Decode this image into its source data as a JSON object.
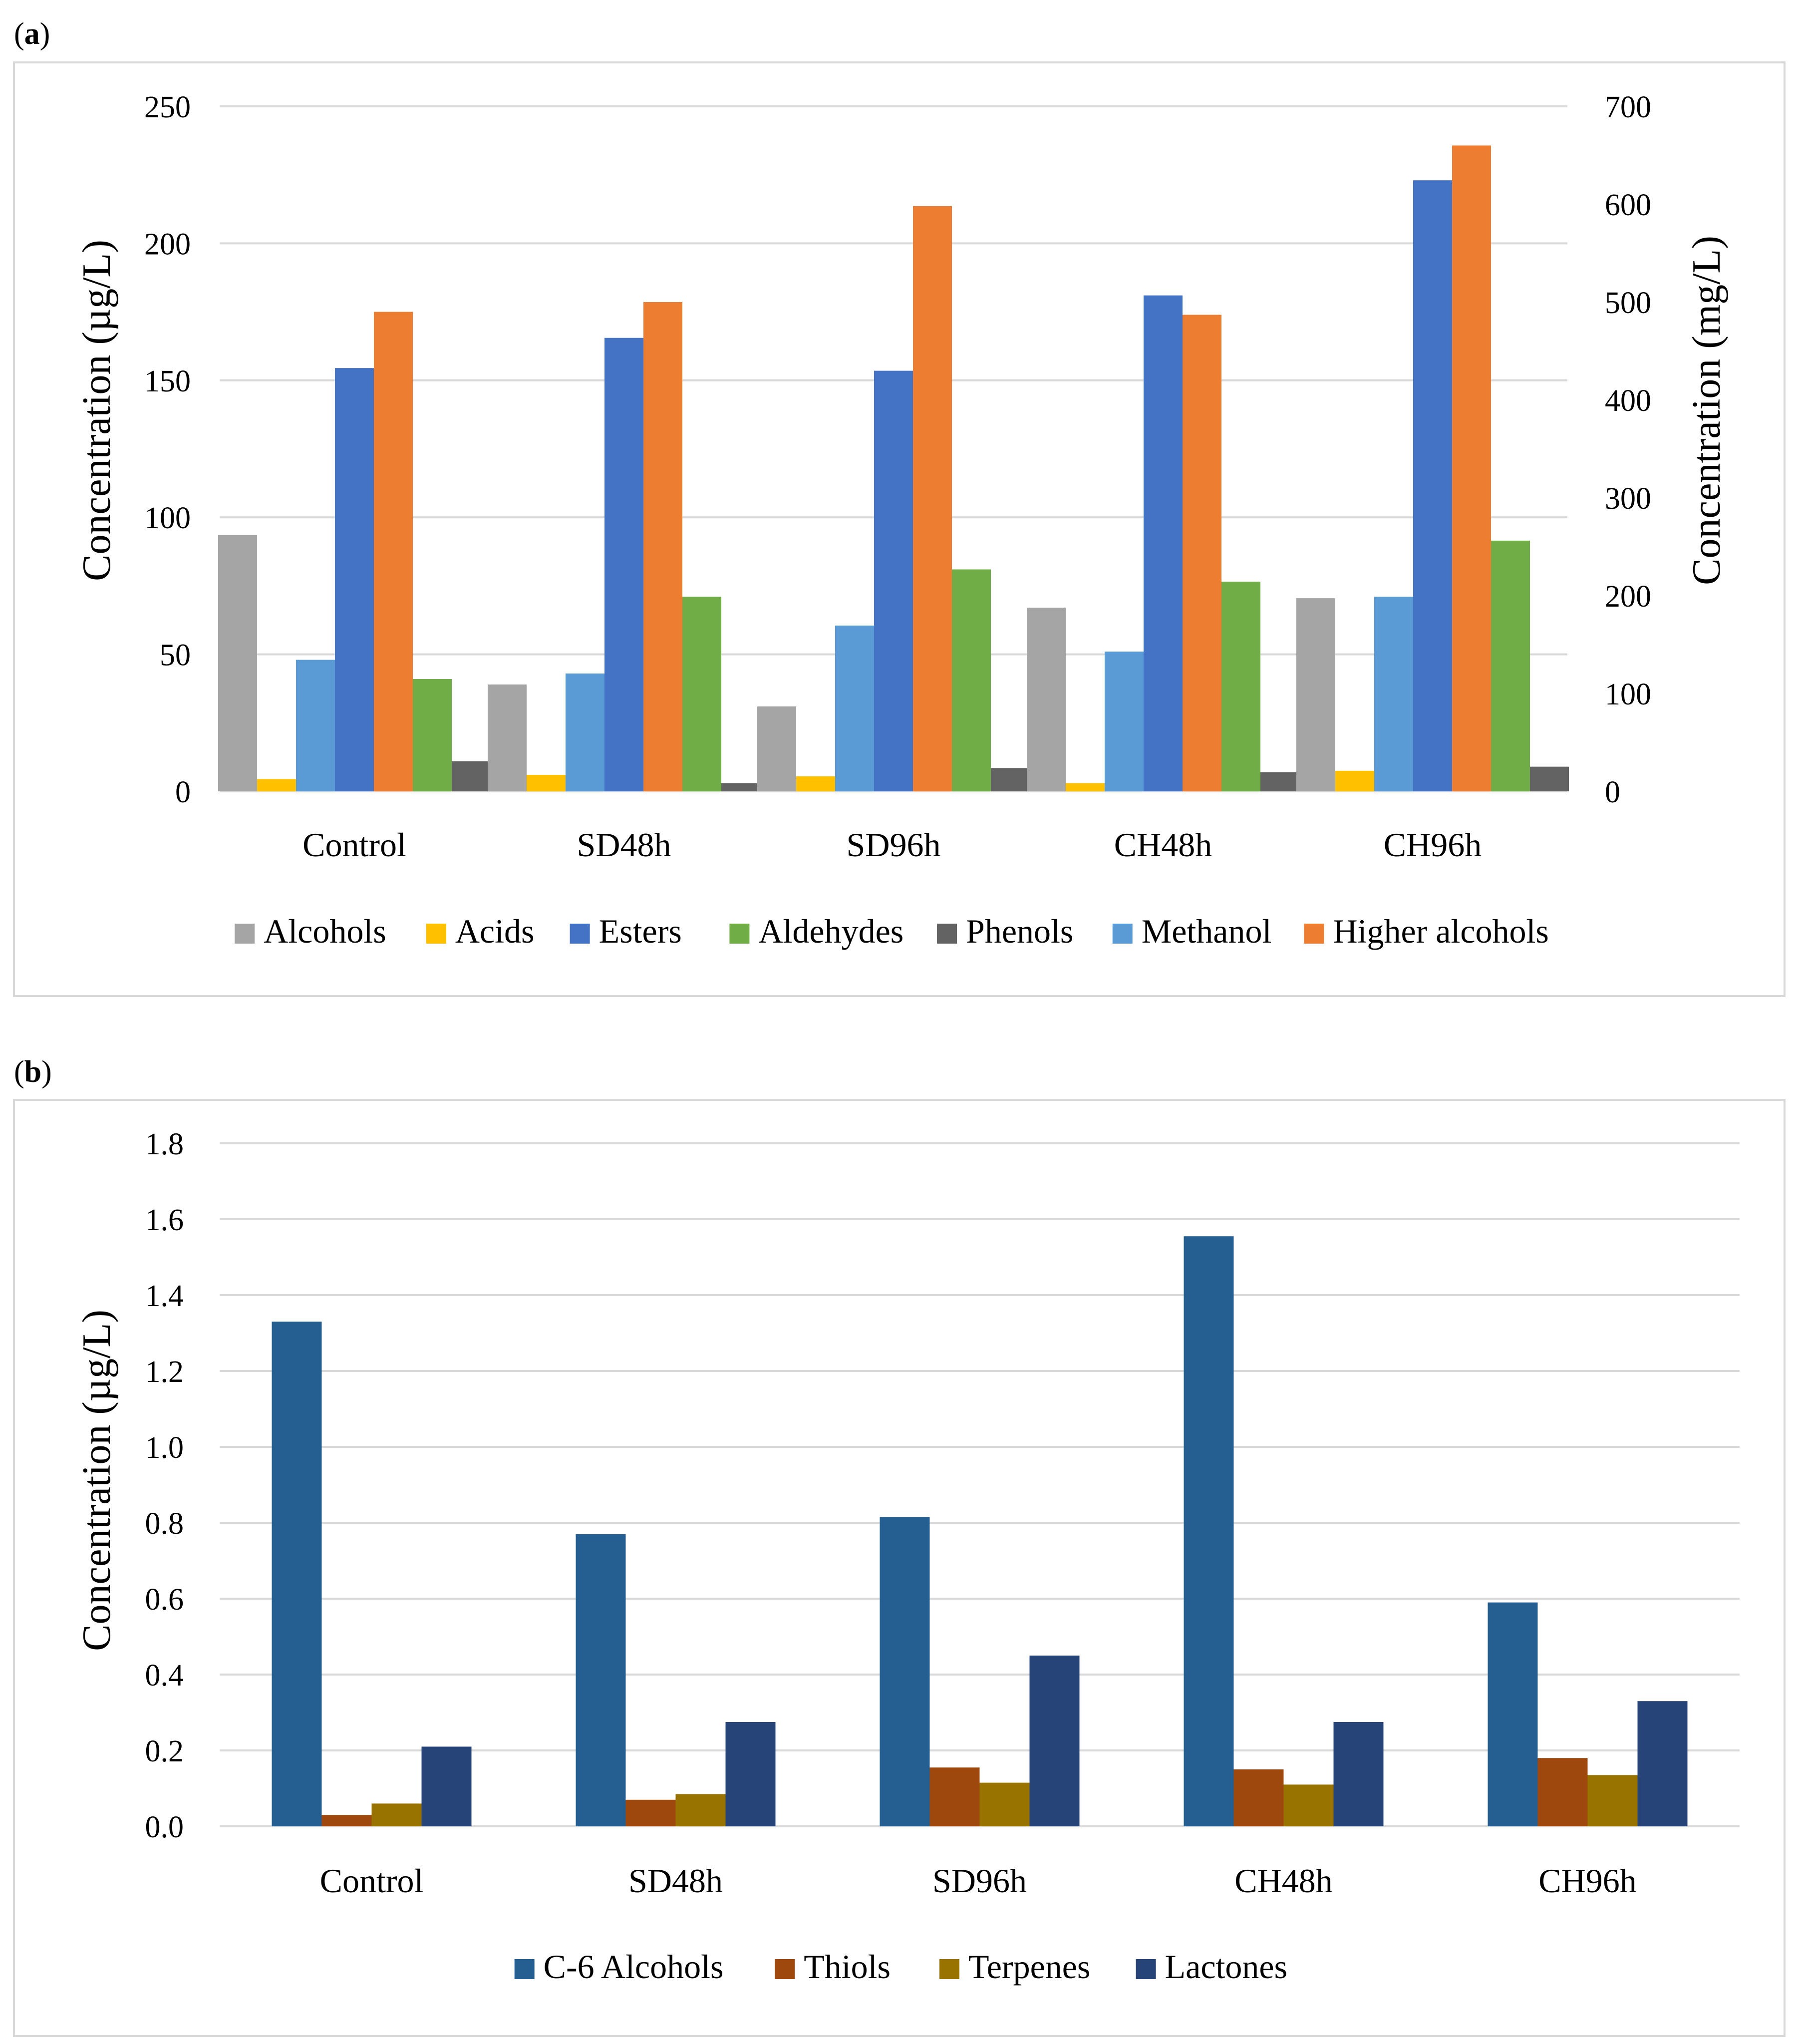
{
  "panels": [
    {
      "label_open": "(",
      "label_letter": "a",
      "label_close": ")",
      "chart_data": {
        "type": "bar",
        "categories": [
          "Control",
          "SD48h",
          "SD96h",
          "CH48h",
          "CH96h"
        ],
        "y_left_label": "Concentration (µg/L)",
        "y_right_label": "Concentration (mg/L)",
        "y_left_ticks": [
          "0",
          "50",
          "100",
          "150",
          "200",
          "250"
        ],
        "y_right_ticks": [
          "0",
          "100",
          "200",
          "300",
          "400",
          "500",
          "600",
          "700"
        ],
        "ylim_left": [
          0,
          250
        ],
        "ylim_right": [
          0,
          700
        ],
        "grid": true,
        "legend_position": "bottom",
        "series": [
          {
            "name": "Alcohols",
            "axis": "left",
            "color": "#a5a5a5",
            "values": [
              93.5,
              39.0,
              31.0,
              67.0,
              70.5
            ]
          },
          {
            "name": "Acids",
            "axis": "left",
            "color": "#ffc000",
            "values": [
              4.5,
              6.0,
              5.5,
              3.0,
              7.5
            ]
          },
          {
            "name": "Methanol",
            "axis": "left",
            "color": "#5b9bd5",
            "values": [
              48.0,
              43.0,
              60.5,
              51.0,
              71.0
            ]
          },
          {
            "name": "Esters",
            "axis": "left",
            "color": "#4472c4",
            "values": [
              154.5,
              165.5,
              153.5,
              181.0,
              223.0
            ]
          },
          {
            "name": "Higher alcohols",
            "axis": "right",
            "color": "#ed7d31",
            "values": [
              490,
              500,
              598,
              487,
              660
            ]
          },
          {
            "name": "Aldehydes",
            "axis": "left",
            "color": "#70ad47",
            "values": [
              41.0,
              71.0,
              81.0,
              76.5,
              91.5
            ]
          },
          {
            "name": "Phenols",
            "axis": "left",
            "color": "#636363",
            "values": [
              11.0,
              3.0,
              8.5,
              7.0,
              9.0
            ]
          }
        ],
        "legend_order": [
          "Alcohols",
          "Acids",
          "Esters",
          "Aldehydes",
          "Phenols",
          "Methanol",
          "Higher alcohols"
        ]
      }
    },
    {
      "label_open": "(",
      "label_letter": "b",
      "label_close": ")",
      "chart_data": {
        "type": "bar",
        "categories": [
          "Control",
          "SD48h",
          "SD96h",
          "CH48h",
          "CH96h"
        ],
        "y_left_label": "Concentration (µg/L)",
        "y_left_ticks": [
          "0.0",
          "0.2",
          "0.4",
          "0.6",
          "0.8",
          "1.0",
          "1.2",
          "1.4",
          "1.6",
          "1.8"
        ],
        "ylim_left": [
          0,
          1.8
        ],
        "grid": true,
        "legend_position": "bottom",
        "series": [
          {
            "name": "C-6 Alcohols",
            "axis": "left",
            "color": "#255e91",
            "values": [
              1.33,
              0.77,
              0.815,
              1.555,
              0.59
            ]
          },
          {
            "name": "Thiols",
            "axis": "left",
            "color": "#9e480e",
            "values": [
              0.03,
              0.07,
              0.155,
              0.15,
              0.18
            ]
          },
          {
            "name": "Terpenes",
            "axis": "left",
            "color": "#997300",
            "values": [
              0.06,
              0.085,
              0.115,
              0.11,
              0.135
            ]
          },
          {
            "name": "Lactones",
            "axis": "left",
            "color": "#264478",
            "values": [
              0.21,
              0.275,
              0.45,
              0.275,
              0.33
            ]
          }
        ],
        "legend_order": [
          "C-6 Alcohols",
          "Thiols",
          "Terpenes",
          "Lactones"
        ]
      }
    }
  ]
}
